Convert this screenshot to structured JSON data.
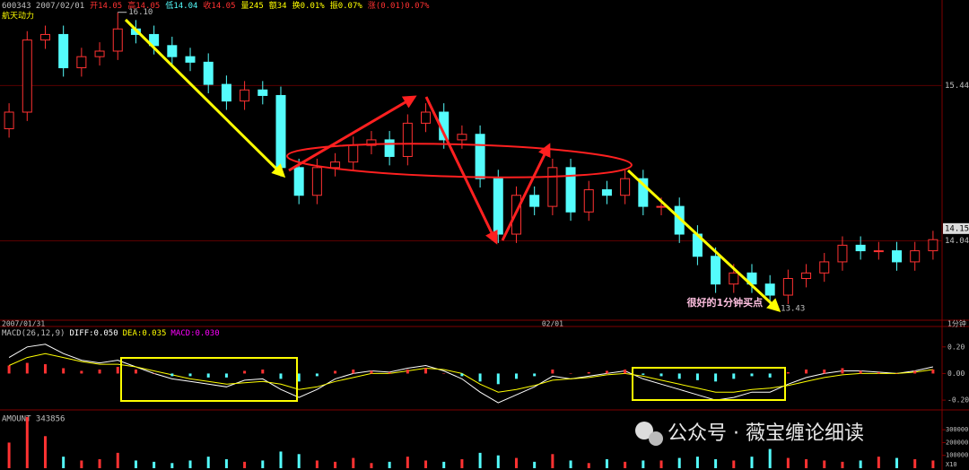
{
  "header": {
    "code": "600343 2007/02/01",
    "items": [
      "开14.05",
      "高14.05",
      "低14.04",
      "收14.05",
      "量245",
      "额34",
      "换0.01%",
      "振0.07%",
      "涨(0.01)0.07%"
    ]
  },
  "chart_data": [
    {
      "type": "candlestick",
      "title": "航天动力",
      "up_color": "#ff3232",
      "down_color": "#54fcfc",
      "categories": [
        "2007/01/31",
        null,
        null,
        null,
        null,
        null,
        null,
        null,
        null,
        null,
        null,
        null,
        null,
        null,
        null,
        null,
        null,
        null,
        null,
        null,
        null,
        null,
        null,
        null,
        null,
        null,
        null,
        null,
        null,
        null,
        "02/01",
        null,
        null,
        null,
        null,
        null,
        null,
        null,
        null,
        null,
        null,
        null,
        null,
        null,
        null,
        null,
        null,
        null,
        null,
        null,
        null,
        null
      ],
      "open": [
        15.05,
        15.2,
        15.85,
        15.9,
        15.6,
        15.7,
        15.75,
        15.95,
        15.9,
        15.8,
        15.7,
        15.65,
        15.45,
        15.3,
        15.4,
        15.35,
        14.7,
        14.45,
        14.7,
        14.75,
        14.9,
        14.95,
        14.8,
        15.1,
        15.2,
        14.95,
        15.0,
        14.6,
        14.1,
        14.45,
        14.35,
        14.7,
        14.3,
        14.5,
        14.45,
        14.6,
        14.35,
        14.35,
        14.1,
        13.9,
        13.65,
        13.75,
        13.65,
        13.55,
        13.7,
        13.75,
        13.85,
        14.0,
        13.95,
        13.95,
        13.85,
        13.95
      ],
      "high": [
        15.28,
        15.93,
        15.98,
        15.98,
        15.78,
        15.83,
        16.1,
        16.03,
        15.98,
        15.88,
        15.78,
        15.73,
        15.53,
        15.48,
        15.48,
        15.43,
        14.78,
        14.78,
        14.83,
        14.98,
        15.03,
        15.03,
        15.18,
        15.28,
        15.28,
        15.08,
        15.08,
        14.68,
        14.53,
        14.53,
        14.78,
        14.78,
        14.58,
        14.58,
        14.68,
        14.68,
        14.43,
        14.43,
        14.18,
        13.98,
        13.83,
        13.83,
        13.73,
        13.78,
        13.83,
        13.93,
        14.08,
        14.08,
        14.03,
        14.03,
        14.03,
        14.13
      ],
      "low": [
        14.97,
        15.12,
        15.77,
        15.52,
        15.52,
        15.62,
        15.67,
        15.82,
        15.72,
        15.62,
        15.57,
        15.37,
        15.22,
        15.22,
        15.27,
        14.62,
        14.37,
        14.37,
        14.62,
        14.67,
        14.82,
        14.72,
        14.72,
        15.02,
        14.87,
        14.87,
        14.52,
        14.02,
        14.02,
        14.27,
        14.27,
        14.22,
        14.22,
        14.37,
        14.37,
        14.27,
        14.27,
        14.02,
        13.82,
        13.57,
        13.57,
        13.57,
        13.43,
        13.47,
        13.62,
        13.67,
        13.77,
        13.87,
        13.87,
        13.77,
        13.77,
        13.87
      ],
      "close": [
        15.2,
        15.85,
        15.9,
        15.6,
        15.7,
        15.75,
        15.95,
        15.9,
        15.8,
        15.7,
        15.65,
        15.45,
        15.3,
        15.4,
        15.35,
        14.7,
        14.45,
        14.7,
        14.75,
        14.9,
        14.95,
        14.8,
        15.1,
        15.2,
        14.95,
        15.0,
        14.6,
        14.1,
        14.45,
        14.35,
        14.7,
        14.3,
        14.5,
        14.45,
        14.6,
        14.35,
        14.35,
        14.1,
        13.9,
        13.65,
        13.75,
        13.65,
        13.55,
        13.7,
        13.75,
        13.85,
        14.0,
        13.95,
        13.95,
        13.85,
        13.95,
        14.05
      ],
      "ylim": [
        13.34,
        16.13
      ],
      "yticks": [
        14.04,
        15.44
      ],
      "grid": true,
      "grid_color": "#5a0000",
      "price_tag": 14.15,
      "extremes": [
        {
          "value": 16.1,
          "label": "16.10"
        },
        {
          "value": 13.43,
          "label": "13.43"
        }
      ],
      "annotation": "很好的1分钟买点"
    },
    {
      "type": "macd",
      "title": "MACD(26,12,9)",
      "period": "1分钟",
      "up_color": "#ff3232",
      "down_color": "#54fcfc",
      "series": [
        {
          "name": "DIFF:0.050",
          "color": "#ffffff",
          "values": [
            0.12,
            0.2,
            0.22,
            0.15,
            0.1,
            0.08,
            0.1,
            0.05,
            0.0,
            -0.04,
            -0.06,
            -0.08,
            -0.1,
            -0.05,
            -0.04,
            -0.12,
            -0.18,
            -0.12,
            -0.04,
            0.0,
            0.02,
            0.01,
            0.04,
            0.06,
            0.02,
            -0.04,
            -0.14,
            -0.22,
            -0.16,
            -0.1,
            -0.02,
            -0.04,
            -0.02,
            0.0,
            0.02,
            -0.04,
            -0.08,
            -0.12,
            -0.16,
            -0.2,
            -0.18,
            -0.14,
            -0.14,
            -0.08,
            -0.03,
            0.0,
            0.02,
            0.02,
            0.01,
            0.0,
            0.02,
            0.05
          ]
        },
        {
          "name": "DEA:0.035",
          "color": "#ffff00",
          "values": [
            0.06,
            0.12,
            0.15,
            0.12,
            0.09,
            0.07,
            0.07,
            0.05,
            0.02,
            -0.01,
            -0.04,
            -0.06,
            -0.08,
            -0.07,
            -0.06,
            -0.08,
            -0.12,
            -0.1,
            -0.06,
            -0.03,
            0.0,
            0.0,
            0.02,
            0.04,
            0.03,
            0.0,
            -0.08,
            -0.14,
            -0.12,
            -0.09,
            -0.05,
            -0.04,
            -0.03,
            -0.01,
            0.0,
            -0.02,
            -0.05,
            -0.08,
            -0.11,
            -0.14,
            -0.14,
            -0.12,
            -0.11,
            -0.09,
            -0.06,
            -0.03,
            -0.01,
            0.0,
            0.0,
            0.0,
            0.01,
            0.03
          ]
        },
        {
          "name": "MACD:0.030",
          "color": "#ff00ff",
          "values": [
            0.06,
            0.08,
            0.07,
            0.04,
            0.02,
            0.03,
            0.05,
            0.03,
            0.0,
            -0.02,
            -0.02,
            -0.03,
            -0.03,
            0.02,
            0.03,
            -0.04,
            -0.06,
            -0.02,
            0.02,
            0.03,
            0.02,
            0.01,
            0.03,
            0.04,
            0.0,
            -0.02,
            -0.06,
            -0.08,
            -0.04,
            -0.02,
            0.03,
            0.0,
            0.01,
            0.02,
            0.03,
            -0.01,
            -0.02,
            -0.04,
            -0.05,
            -0.06,
            -0.04,
            -0.02,
            -0.03,
            0.01,
            0.03,
            0.03,
            0.04,
            0.02,
            0.01,
            0.0,
            0.02,
            0.03
          ]
        }
      ],
      "ylim": [
        -0.26,
        0.34
      ],
      "yticks": [
        {
          "value": -0.2,
          "label": "-0.20"
        },
        {
          "value": 0,
          "label": "0.00"
        },
        {
          "value": 0.2,
          "label": "0.20"
        }
      ]
    },
    {
      "type": "bar",
      "title": "AMOUNT 343856",
      "unit_label": "X10",
      "values": [
        200000,
        400000,
        250000,
        90000,
        60000,
        70000,
        120000,
        60000,
        50000,
        40000,
        60000,
        90000,
        70000,
        50000,
        60000,
        130000,
        110000,
        60000,
        50000,
        80000,
        40000,
        50000,
        90000,
        60000,
        50000,
        70000,
        120000,
        100000,
        80000,
        50000,
        110000,
        60000,
        40000,
        70000,
        50000,
        60000,
        60000,
        80000,
        90000,
        70000,
        60000,
        90000,
        150000,
        80000,
        70000,
        60000,
        50000,
        60000,
        90000,
        80000,
        70000,
        60000
      ],
      "ylim": [
        0,
        420000
      ],
      "yticks": [
        100000,
        200000,
        300000
      ]
    }
  ],
  "watermark": "公众号 · 薇宝缠论细读"
}
